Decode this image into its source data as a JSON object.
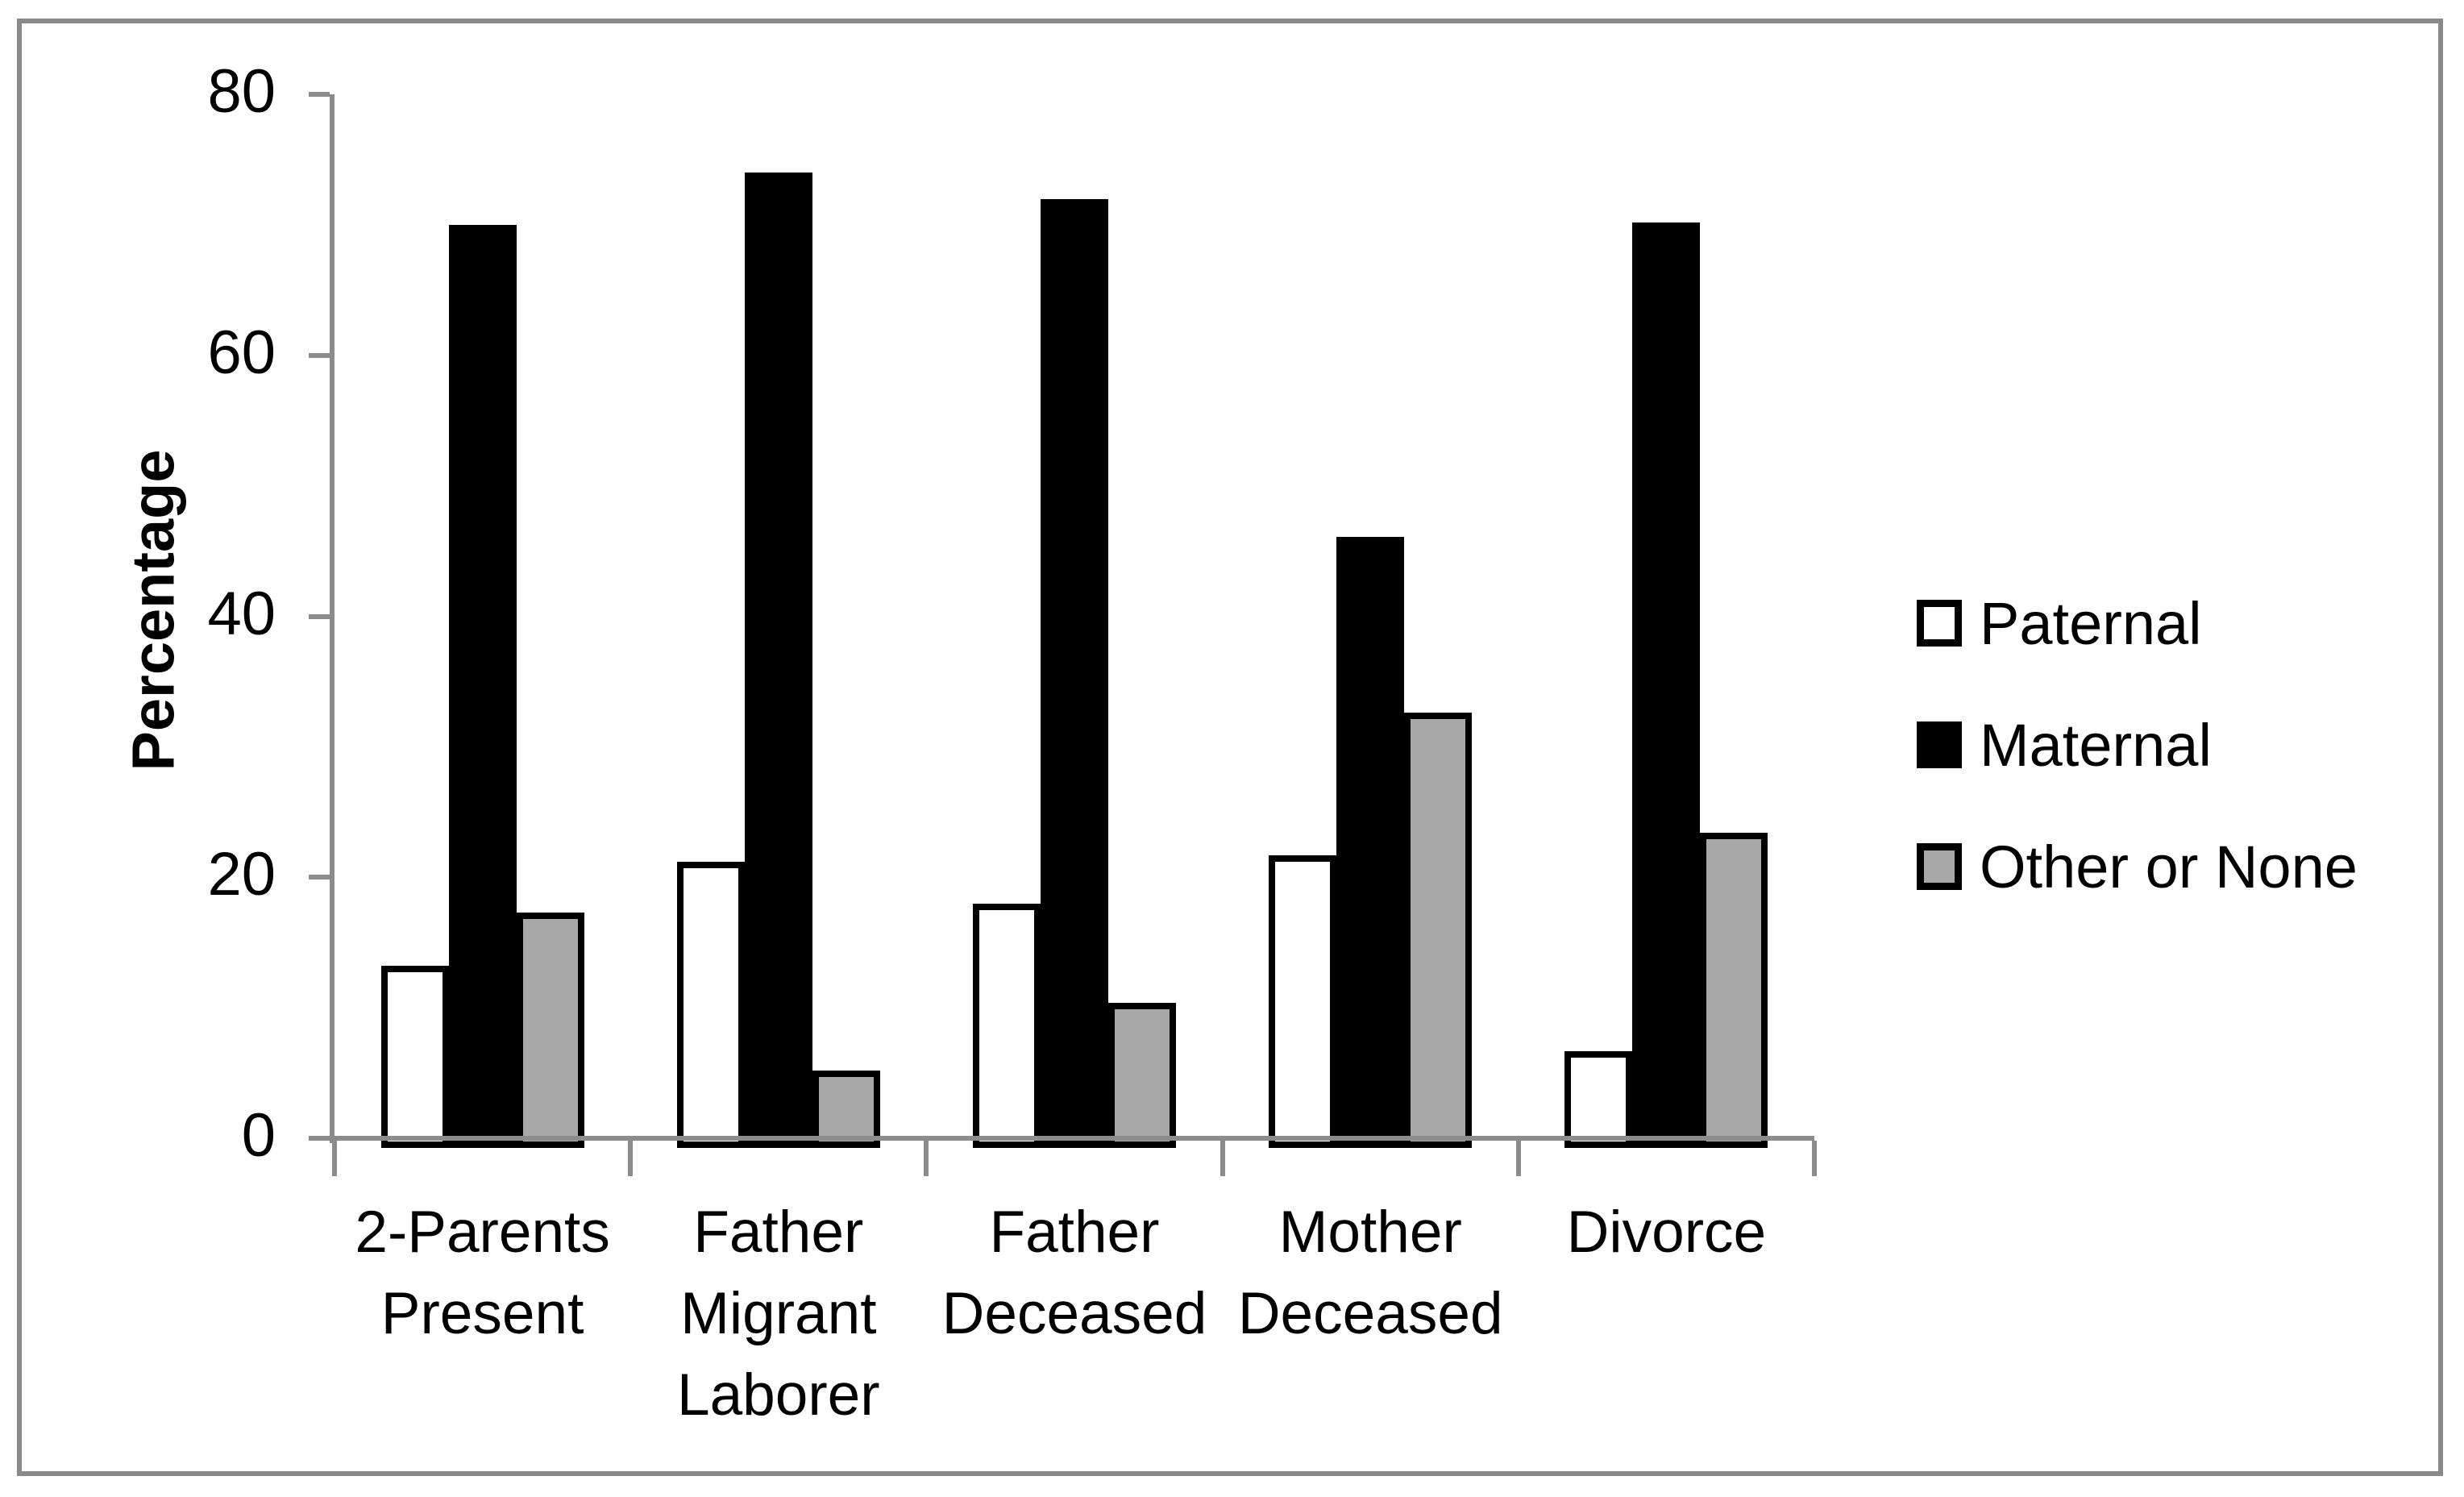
{
  "figure": {
    "frame_border_color": "#8a8a8a",
    "axis_color": "#8c8c8c",
    "background_color": "#ffffff"
  },
  "chart_data": {
    "type": "bar",
    "title": "",
    "xlabel": "",
    "ylabel": "Percentage",
    "ylim": [
      0,
      80
    ],
    "yticks": [
      0,
      20,
      40,
      60,
      80
    ],
    "grid": false,
    "legend_position": "right",
    "categories": [
      "2-Parents Present",
      "Father Migrant Laborer",
      "Father Deceased",
      "Mother Deceased",
      "Divorce"
    ],
    "category_label_lines": [
      [
        "2-Parents",
        "Present"
      ],
      [
        "Father",
        "Migrant",
        "Laborer"
      ],
      [
        "Father",
        "Deceased"
      ],
      [
        "Mother",
        "Deceased"
      ],
      [
        "Divorce"
      ]
    ],
    "series": [
      {
        "name": "Paternal",
        "color": "#ffffff",
        "outline": "#000000",
        "values": [
          13.2,
          21.2,
          18.0,
          21.7,
          6.7
        ]
      },
      {
        "name": "Maternal",
        "color": "#000000",
        "outline": "#000000",
        "values": [
          70.0,
          74.0,
          72.0,
          46.1,
          70.2
        ]
      },
      {
        "name": "Other or None",
        "color": "#a8a8a8",
        "outline": "#000000",
        "values": [
          17.3,
          5.2,
          10.4,
          32.6,
          23.4
        ]
      }
    ]
  }
}
